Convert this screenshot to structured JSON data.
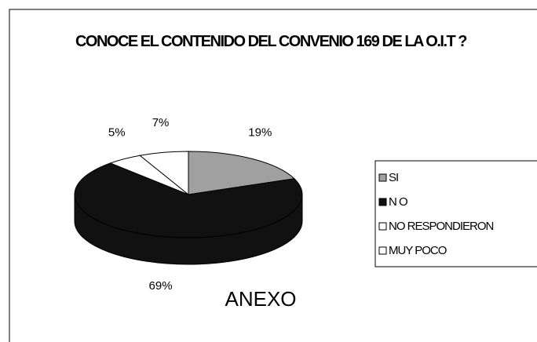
{
  "chart_data": {
    "type": "pie",
    "title": "CONOCE EL CONTENIDO DEL CONVENIO 169 DE LA O.I.T ?",
    "annotation": "ANEXO",
    "categories": [
      "SI",
      "N O",
      "NO RESPONDIERON",
      "MUY POCO"
    ],
    "values": [
      19,
      69,
      5,
      7
    ],
    "value_labels": [
      "19%",
      "69%",
      "5%",
      "7%"
    ],
    "colors": [
      "#a0a0a0",
      "#111111",
      "#ffffff",
      "#ffffff"
    ],
    "legend": "right"
  }
}
